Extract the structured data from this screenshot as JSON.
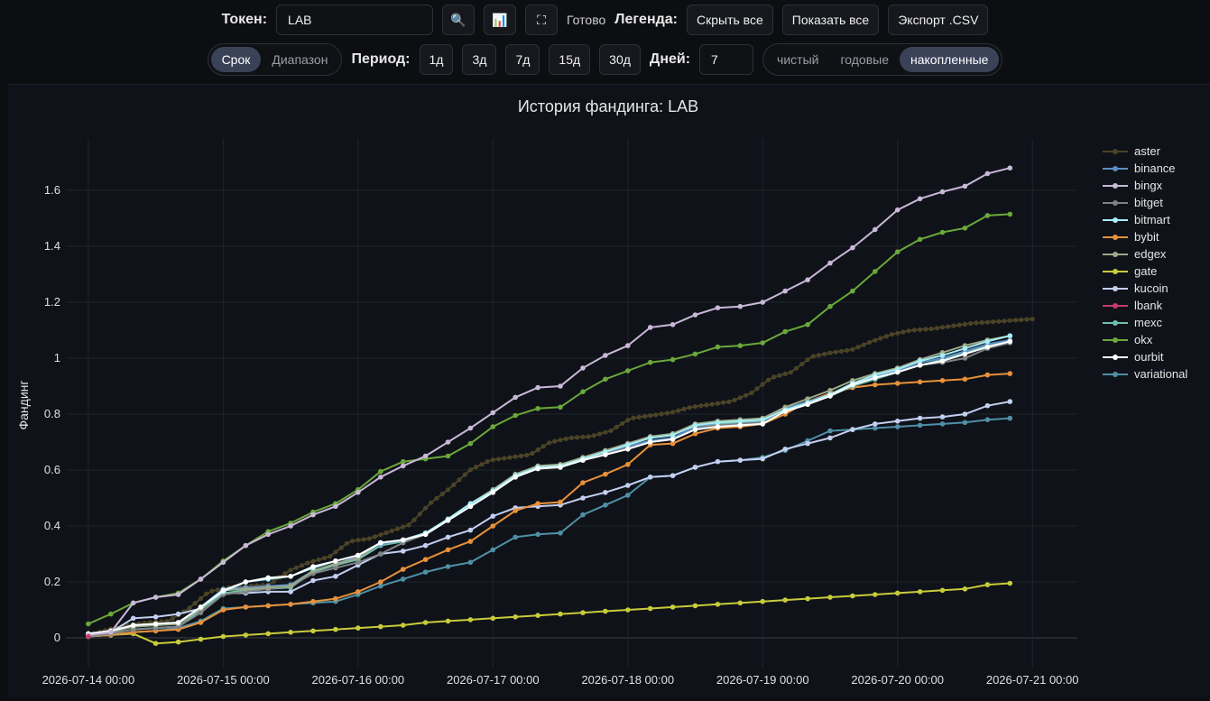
{
  "toolbar": {
    "token_label": "Токен:",
    "token_value": "LAB",
    "search_icon": "🔍",
    "chart_icon": "📊",
    "fullscreen_icon": "⛶",
    "status": "Готово",
    "legend_label": "Легенда:",
    "hide_all": "Скрыть все",
    "show_all": "Показать все",
    "export": "Экспорт .CSV"
  },
  "controls": {
    "mode_options": [
      "Срок",
      "Диапазон"
    ],
    "mode_active": "Срок",
    "period_label": "Период:",
    "periods": [
      "1д",
      "3д",
      "7д",
      "15д",
      "30д"
    ],
    "days_label": "Дней:",
    "days_value": "7",
    "view_options": [
      "чистый",
      "годовые",
      "накопленные"
    ],
    "view_active": "накопленные"
  },
  "chart_data": {
    "type": "line",
    "title": "История фандинга: LAB",
    "xlabel": "",
    "ylabel": "Фандинг",
    "x_ticks": [
      "2026-07-14 00:00",
      "2026-07-15 00:00",
      "2026-07-16 00:00",
      "2026-07-17 00:00",
      "2026-07-18 00:00",
      "2026-07-19 00:00",
      "2026-07-20 00:00",
      "2026-07-21 00:00"
    ],
    "y_ticks": [
      0,
      0.2,
      0.4,
      0.6,
      0.8,
      1,
      1.2,
      1.4,
      1.6
    ],
    "xlim": [
      "2026-07-13 20:00",
      "2026-07-21 08:00"
    ],
    "ylim": [
      -0.05,
      1.85
    ],
    "grid": true,
    "legend": "right",
    "series": [
      {
        "name": "aster",
        "color": "#4a4326",
        "interval_h": 1,
        "start": "2026-07-14 00:00",
        "end": "2026-07-21 00:00",
        "anchors": [
          [
            0,
            0.01
          ],
          [
            1,
            0.03
          ],
          [
            2,
            0.045
          ],
          [
            3,
            0.055
          ],
          [
            4,
            0.06
          ],
          [
            5,
            0.105
          ],
          [
            6,
            0.165
          ],
          [
            7,
            0.18
          ],
          [
            8,
            0.185
          ],
          [
            9,
            0.19
          ],
          [
            10,
            0.24
          ],
          [
            11,
            0.27
          ],
          [
            12,
            0.29
          ],
          [
            13,
            0.345
          ],
          [
            14,
            0.355
          ],
          [
            15,
            0.38
          ],
          [
            16,
            0.405
          ],
          [
            17,
            0.48
          ],
          [
            18,
            0.535
          ],
          [
            19,
            0.6
          ],
          [
            20,
            0.635
          ],
          [
            21,
            0.645
          ],
          [
            22,
            0.655
          ],
          [
            23,
            0.7
          ],
          [
            24,
            0.715
          ],
          [
            25,
            0.72
          ],
          [
            26,
            0.74
          ],
          [
            27,
            0.785
          ],
          [
            28,
            0.795
          ],
          [
            29,
            0.805
          ],
          [
            30,
            0.825
          ],
          [
            31,
            0.835
          ],
          [
            32,
            0.845
          ],
          [
            33,
            0.875
          ],
          [
            34,
            0.93
          ],
          [
            35,
            0.95
          ],
          [
            36,
            1.005
          ],
          [
            37,
            1.02
          ],
          [
            38,
            1.03
          ],
          [
            39,
            1.06
          ],
          [
            40,
            1.085
          ],
          [
            41,
            1.1
          ],
          [
            42,
            1.105
          ],
          [
            43,
            1.115
          ],
          [
            44,
            1.125
          ],
          [
            45,
            1.13
          ],
          [
            46,
            1.135
          ],
          [
            47,
            1.14
          ]
        ]
      },
      {
        "name": "binance",
        "color": "#5b8ec2",
        "interval_h": 4,
        "start": "2026-07-14 00:00",
        "end": "2026-07-20 20:00",
        "values": [
          0.01,
          0.02,
          0.04,
          0.045,
          0.05,
          0.11,
          0.175,
          0.18,
          0.185,
          0.19,
          0.24,
          0.265,
          0.29,
          0.335,
          0.35,
          0.37,
          0.42,
          0.475,
          0.525,
          0.58,
          0.61,
          0.615,
          0.64,
          0.665,
          0.685,
          0.705,
          0.715,
          0.755,
          0.77,
          0.775,
          0.78,
          0.82,
          0.845,
          0.87,
          0.905,
          0.935,
          0.955,
          0.985,
          1.0,
          1.025,
          1.05,
          1.065
        ]
      },
      {
        "name": "bingx",
        "color": "#c9b8d8",
        "interval_h": 4,
        "start": "2026-07-14 00:00",
        "end": "2026-07-20 20:00",
        "values": [
          0.01,
          0.02,
          0.125,
          0.145,
          0.155,
          0.21,
          0.27,
          0.33,
          0.37,
          0.4,
          0.44,
          0.47,
          0.52,
          0.575,
          0.615,
          0.65,
          0.7,
          0.75,
          0.805,
          0.86,
          0.895,
          0.9,
          0.965,
          1.01,
          1.045,
          1.11,
          1.12,
          1.155,
          1.18,
          1.185,
          1.2,
          1.24,
          1.28,
          1.34,
          1.395,
          1.46,
          1.53,
          1.57,
          1.595,
          1.615,
          1.66,
          1.68
        ]
      },
      {
        "name": "bitget",
        "color": "#7f8285",
        "interval_h": 4,
        "start": "2026-07-14 00:00",
        "end": "2026-07-20 20:00",
        "values": [
          0.005,
          0.015,
          0.03,
          0.035,
          0.04,
          0.09,
          0.155,
          0.165,
          0.175,
          0.185,
          0.23,
          0.25,
          0.27,
          0.3,
          0.34,
          0.37,
          0.42,
          0.47,
          0.525,
          0.575,
          0.61,
          0.615,
          0.64,
          0.66,
          0.68,
          0.7,
          0.71,
          0.75,
          0.76,
          0.765,
          0.77,
          0.81,
          0.84,
          0.865,
          0.905,
          0.93,
          0.955,
          0.975,
          0.985,
          1.0,
          1.035,
          1.055
        ]
      },
      {
        "name": "bitmart",
        "color": "#a6eef5",
        "interval_h": 4,
        "start": "2026-07-14 00:00",
        "end": "2026-07-20 20:00",
        "values": [
          0.015,
          0.025,
          0.045,
          0.05,
          0.055,
          0.11,
          0.165,
          0.2,
          0.21,
          0.22,
          0.25,
          0.275,
          0.295,
          0.34,
          0.35,
          0.375,
          0.425,
          0.48,
          0.525,
          0.58,
          0.61,
          0.615,
          0.64,
          0.665,
          0.69,
          0.715,
          0.725,
          0.76,
          0.77,
          0.775,
          0.78,
          0.815,
          0.84,
          0.87,
          0.91,
          0.94,
          0.96,
          0.99,
          1.01,
          1.035,
          1.06,
          1.08
        ]
      },
      {
        "name": "bybit",
        "color": "#e8913a",
        "interval_h": 4,
        "start": "2026-07-14 00:00",
        "end": "2026-07-20 20:00",
        "values": [
          0.005,
          0.01,
          0.02,
          0.025,
          0.03,
          0.055,
          0.1,
          0.11,
          0.115,
          0.12,
          0.13,
          0.14,
          0.165,
          0.2,
          0.245,
          0.28,
          0.315,
          0.345,
          0.4,
          0.455,
          0.48,
          0.485,
          0.555,
          0.585,
          0.62,
          0.69,
          0.695,
          0.73,
          0.75,
          0.755,
          0.765,
          0.8,
          0.845,
          0.875,
          0.895,
          0.905,
          0.91,
          0.915,
          0.92,
          0.925,
          0.94,
          0.945
        ]
      },
      {
        "name": "edgex",
        "color": "#9ea98a",
        "interval_h": 4,
        "start": "2026-07-14 00:00",
        "end": "2026-07-20 20:00",
        "values": [
          0.01,
          0.02,
          0.04,
          0.045,
          0.05,
          0.105,
          0.17,
          0.175,
          0.18,
          0.185,
          0.24,
          0.265,
          0.285,
          0.34,
          0.35,
          0.375,
          0.425,
          0.48,
          0.53,
          0.585,
          0.615,
          0.62,
          0.645,
          0.67,
          0.695,
          0.72,
          0.73,
          0.765,
          0.775,
          0.78,
          0.785,
          0.825,
          0.855,
          0.885,
          0.92,
          0.945,
          0.965,
          0.995,
          1.02,
          1.045,
          1.065,
          1.08
        ]
      },
      {
        "name": "gate",
        "color": "#c8cc3a",
        "interval_h": 4,
        "start": "2026-07-14 00:00",
        "end": "2026-07-20 20:00",
        "values": [
          0.005,
          0.01,
          0.015,
          -0.02,
          -0.015,
          -0.005,
          0.005,
          0.01,
          0.015,
          0.02,
          0.025,
          0.03,
          0.035,
          0.04,
          0.045,
          0.055,
          0.06,
          0.065,
          0.07,
          0.075,
          0.08,
          0.085,
          0.09,
          0.095,
          0.1,
          0.105,
          0.11,
          0.115,
          0.12,
          0.125,
          0.13,
          0.135,
          0.14,
          0.145,
          0.15,
          0.155,
          0.16,
          0.165,
          0.17,
          0.175,
          0.19,
          0.195
        ]
      },
      {
        "name": "kucoin",
        "color": "#c3cff0",
        "interval_h": 4,
        "start": "2026-07-14 00:00",
        "end": "2026-07-20 20:00",
        "values": [
          0.01,
          0.02,
          0.07,
          0.075,
          0.085,
          0.105,
          0.16,
          0.16,
          0.165,
          0.165,
          0.205,
          0.22,
          0.26,
          0.3,
          0.31,
          0.33,
          0.36,
          0.385,
          0.435,
          0.465,
          0.47,
          0.475,
          0.5,
          0.52,
          0.545,
          0.575,
          0.58,
          0.61,
          0.63,
          0.635,
          0.64,
          0.675,
          0.695,
          0.715,
          0.745,
          0.765,
          0.775,
          0.785,
          0.79,
          0.8,
          0.83,
          0.845
        ]
      },
      {
        "name": "lbank",
        "color": "#c83b6e",
        "interval_h": 4,
        "start": "2026-07-14 00:00",
        "end": "2026-07-14 00:00",
        "values": [
          0.005
        ]
      },
      {
        "name": "mexc",
        "color": "#6fc0b0",
        "interval_h": 4,
        "start": "2026-07-14 00:00",
        "end": "2026-07-20 20:00",
        "values": [
          0.005,
          0.015,
          0.03,
          0.035,
          0.04,
          0.1,
          0.16,
          0.17,
          0.175,
          0.18,
          0.235,
          0.26,
          0.28,
          0.33,
          0.345,
          0.37,
          0.42,
          0.47,
          0.52,
          0.575,
          0.605,
          0.61,
          0.635,
          0.66,
          0.68,
          0.705,
          0.715,
          0.75,
          0.765,
          0.77,
          0.775,
          0.81,
          0.835,
          0.865,
          0.9,
          0.925,
          0.95,
          0.975,
          0.995,
          1.02,
          1.045,
          1.06
        ]
      },
      {
        "name": "okx",
        "color": "#6aa83a",
        "interval_h": 4,
        "start": "2026-07-14 00:00",
        "end": "2026-07-20 20:00",
        "values": [
          0.05,
          0.085,
          0.125,
          0.145,
          0.16,
          0.21,
          0.275,
          0.33,
          0.38,
          0.41,
          0.45,
          0.48,
          0.53,
          0.595,
          0.63,
          0.64,
          0.65,
          0.695,
          0.755,
          0.795,
          0.82,
          0.825,
          0.88,
          0.925,
          0.955,
          0.985,
          0.995,
          1.015,
          1.04,
          1.045,
          1.055,
          1.095,
          1.12,
          1.185,
          1.24,
          1.31,
          1.38,
          1.425,
          1.45,
          1.465,
          1.51,
          1.515
        ]
      },
      {
        "name": "ourbit",
        "color": "#ffffff",
        "interval_h": 4,
        "start": "2026-07-14 00:00",
        "end": "2026-07-20 20:00",
        "values": [
          0.015,
          0.025,
          0.045,
          0.05,
          0.055,
          0.11,
          0.17,
          0.2,
          0.215,
          0.22,
          0.255,
          0.275,
          0.295,
          0.34,
          0.35,
          0.37,
          0.42,
          0.47,
          0.52,
          0.575,
          0.605,
          0.61,
          0.635,
          0.655,
          0.675,
          0.7,
          0.71,
          0.745,
          0.755,
          0.76,
          0.765,
          0.81,
          0.835,
          0.865,
          0.905,
          0.93,
          0.95,
          0.975,
          0.99,
          1.015,
          1.04,
          1.06
        ]
      },
      {
        "name": "variational",
        "color": "#4f90a6",
        "interval_h": 4,
        "start": "2026-07-14 00:00",
        "end": "2026-07-20 20:00",
        "values": [
          0.005,
          0.01,
          0.02,
          0.025,
          0.035,
          0.06,
          0.105,
          0.11,
          0.115,
          0.12,
          0.125,
          0.13,
          0.155,
          0.185,
          0.21,
          0.235,
          0.255,
          0.27,
          0.315,
          0.36,
          0.37,
          0.375,
          0.44,
          0.475,
          0.51,
          0.575,
          0.58,
          0.61,
          0.63,
          0.635,
          0.645,
          0.67,
          0.705,
          0.74,
          0.745,
          0.75,
          0.755,
          0.76,
          0.765,
          0.77,
          0.78,
          0.785
        ]
      }
    ]
  }
}
